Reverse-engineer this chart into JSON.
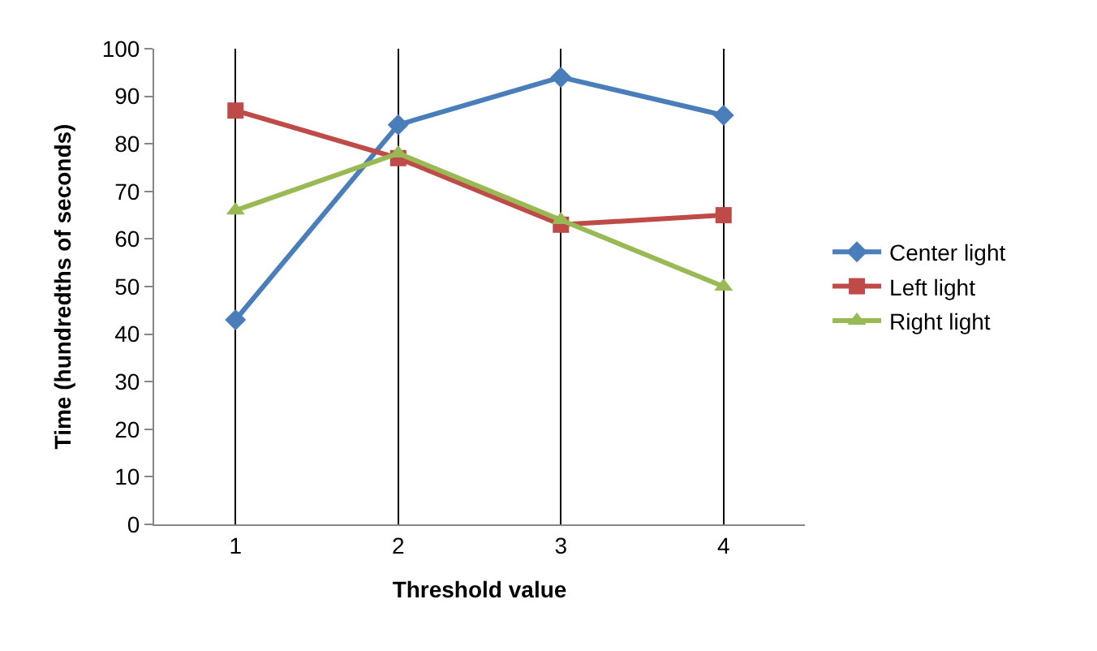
{
  "chart_data": {
    "type": "line",
    "xlabel": "Threshold value",
    "ylabel": "Time (hundredths of seconds)",
    "categories": [
      "1",
      "2",
      "3",
      "4"
    ],
    "series": [
      {
        "name": "Center light",
        "color": "#4a7ebb",
        "marker": "diamond",
        "values": [
          43,
          84,
          94,
          86
        ]
      },
      {
        "name": "Left light",
        "color": "#be4b48",
        "marker": "square",
        "values": [
          87,
          77,
          63,
          65
        ]
      },
      {
        "name": "Right light",
        "color": "#98b954",
        "marker": "triangle",
        "values": [
          66,
          78,
          64,
          50
        ]
      }
    ],
    "ylim": [
      0,
      100
    ],
    "yticks": [
      0,
      10,
      20,
      30,
      40,
      50,
      60,
      70,
      80,
      90,
      100
    ],
    "grid": "x",
    "legend": "right",
    "line_style": "solid"
  }
}
